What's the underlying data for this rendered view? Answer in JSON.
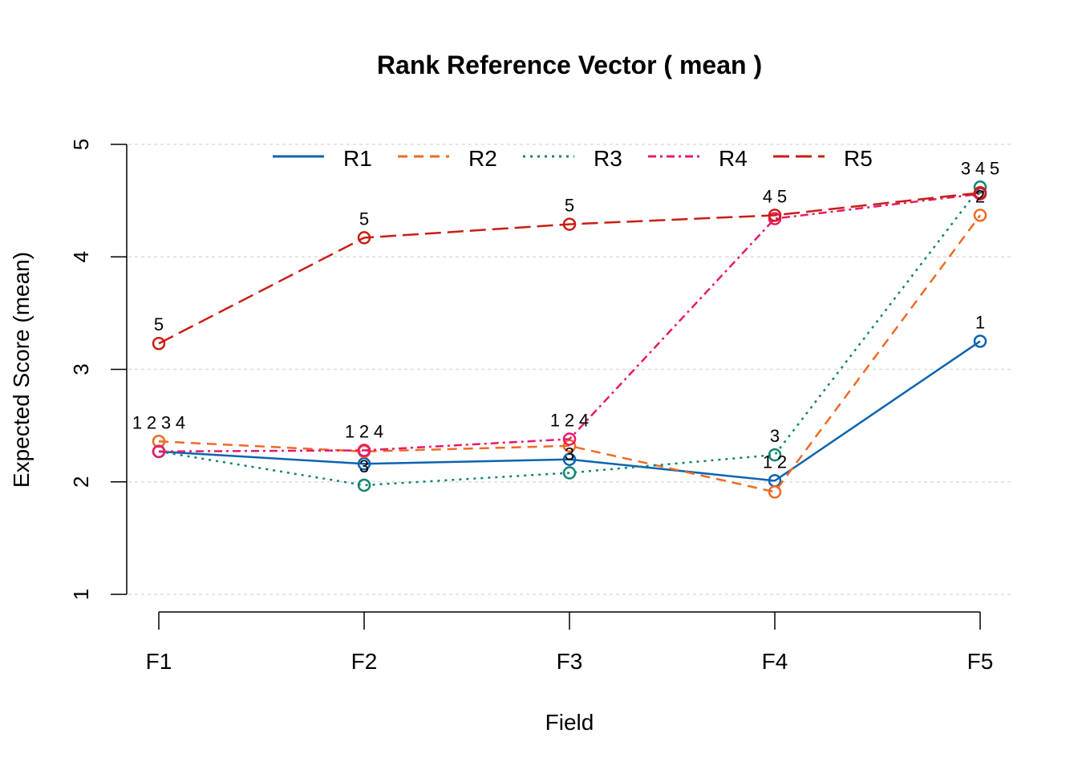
{
  "chart_data": {
    "type": "line",
    "title": "Rank Reference Vector ( mean )",
    "xlabel": "Field",
    "ylabel": "Expected Score (mean)",
    "categories": [
      "F1",
      "F2",
      "F3",
      "F4",
      "F5"
    ],
    "ylim": [
      1,
      5
    ],
    "yticks": [
      "1",
      "2",
      "3",
      "4",
      "5"
    ],
    "grid": true,
    "legend_position": "top",
    "series": [
      {
        "name": "R1",
        "label": "1",
        "color": "#0b63b0",
        "dash": "",
        "values": [
          2.27,
          2.16,
          2.2,
          2.01,
          3.25
        ]
      },
      {
        "name": "R2",
        "label": "2",
        "color": "#ee6a24",
        "dash": "12 8",
        "values": [
          2.36,
          2.27,
          2.32,
          1.91,
          4.37
        ]
      },
      {
        "name": "R3",
        "label": "3",
        "color": "#11846e",
        "dash": "3 6",
        "values": [
          2.27,
          1.97,
          2.08,
          2.24,
          4.62
        ]
      },
      {
        "name": "R4",
        "label": "4",
        "color": "#e8186a",
        "dash": "10 5 3 5",
        "values": [
          2.27,
          2.28,
          2.38,
          4.34,
          4.56
        ]
      },
      {
        "name": "R5",
        "label": "5",
        "color": "#c81e14",
        "dash": "20 8",
        "values": [
          3.23,
          4.17,
          4.29,
          4.37,
          4.57
        ]
      }
    ]
  }
}
